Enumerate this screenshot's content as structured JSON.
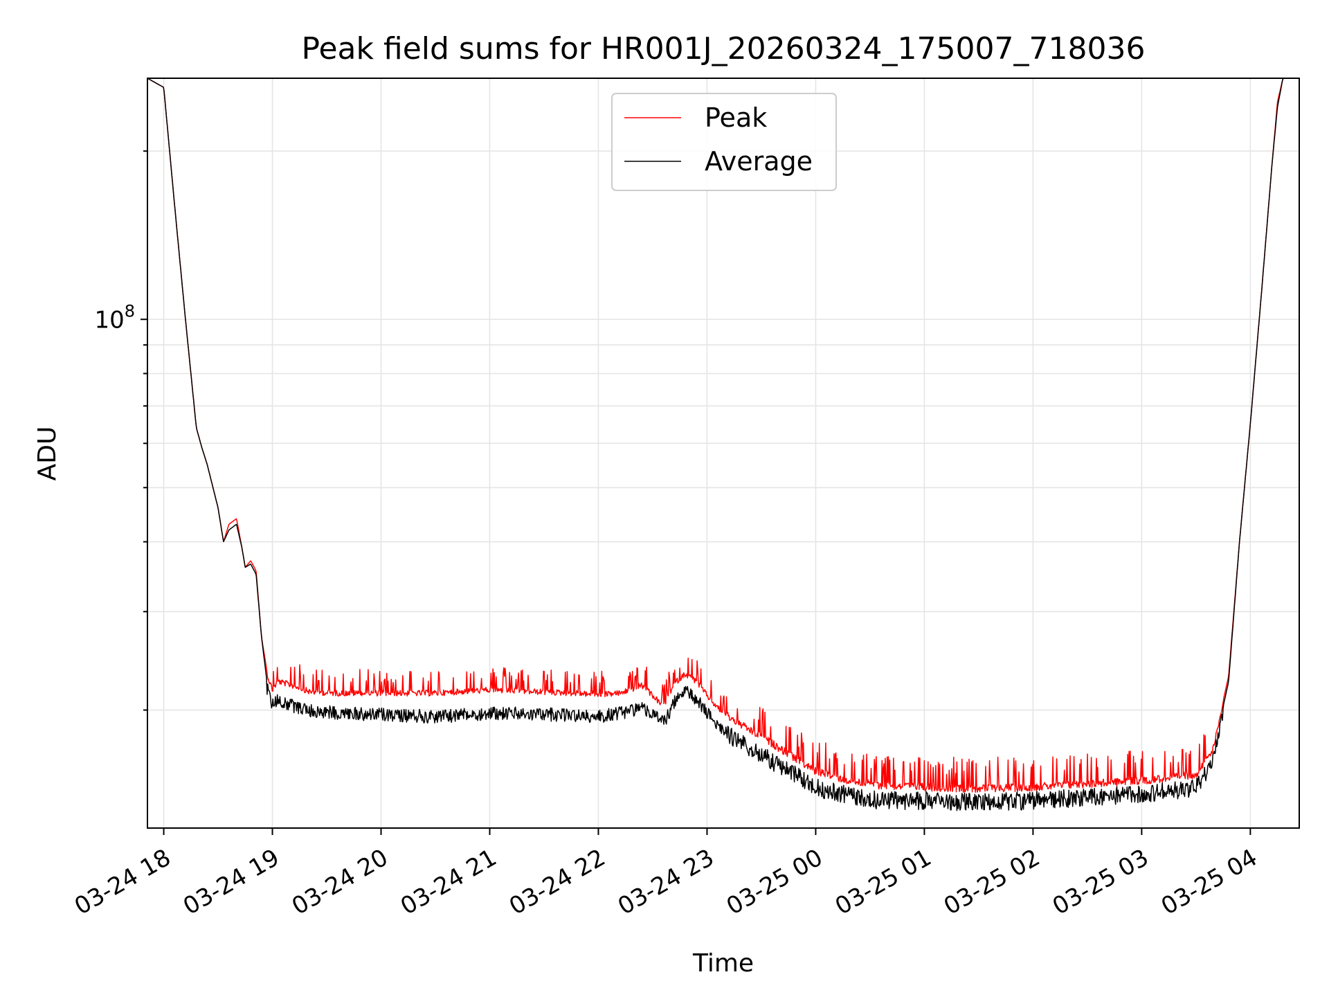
{
  "chart_data": {
    "type": "line",
    "title": "Peak field sums for HR001J_20260324_175007_718036",
    "xlabel": "Time",
    "ylabel": "ADU",
    "yscale": "log",
    "grid": true,
    "legend_position": "upper-center",
    "x_unit": "hours since 03-24 18:00",
    "xlim": [
      -0.15,
      10.45
    ],
    "ylim": [
      12300000,
      270000000
    ],
    "x_ticks": [
      0,
      1,
      2,
      3,
      4,
      5,
      6,
      7,
      8,
      9,
      10
    ],
    "x_tick_labels": [
      "03-24 18",
      "03-24 19",
      "03-24 20",
      "03-24 21",
      "03-24 22",
      "03-24 23",
      "03-25 00",
      "03-25 01",
      "03-25 02",
      "03-25 03",
      "03-25 04"
    ],
    "y_major_ticks": [
      {
        "value": 100000000,
        "base": "10",
        "exponent": "8"
      }
    ],
    "y_minor_ticks": [
      20000000,
      30000000,
      40000000,
      50000000,
      60000000,
      70000000,
      80000000,
      90000000,
      200000000
    ],
    "series": [
      {
        "name": "Peak",
        "color": "#ff0000",
        "noise": "spiky",
        "x": [
          -0.15,
          0.0,
          0.1,
          0.2,
          0.3,
          0.35,
          0.4,
          0.5,
          0.55,
          0.6,
          0.67,
          0.72,
          0.75,
          0.8,
          0.85,
          0.9,
          0.95,
          1.0,
          1.05,
          1.15,
          1.25,
          1.35,
          1.6,
          2.0,
          2.5,
          3.0,
          3.5,
          3.8,
          4.0,
          4.2,
          4.4,
          4.5,
          4.6,
          4.7,
          4.8,
          4.9,
          5.0,
          5.1,
          5.3,
          5.6,
          6.0,
          6.3,
          6.6,
          7.0,
          7.5,
          8.0,
          8.5,
          9.0,
          9.3,
          9.5,
          9.65,
          9.8,
          9.9,
          10.0,
          10.1,
          10.2,
          10.25,
          10.3,
          10.45
        ],
        "y": [
          270000000,
          260000000,
          160000000,
          100000000,
          64000000,
          59000000,
          55000000,
          46000000,
          40000000,
          43000000,
          44000000,
          39000000,
          36000000,
          37000000,
          35500000,
          27000000,
          23500000,
          22000000,
          22800000,
          22500000,
          22200000,
          21800000,
          21700000,
          21700000,
          21700000,
          22000000,
          21800000,
          21700000,
          21600000,
          21700000,
          22400000,
          21500000,
          20500000,
          22600000,
          23500000,
          22800000,
          21500000,
          20400000,
          19200000,
          17700000,
          15800000,
          15200000,
          14900000,
          14800000,
          14700000,
          14800000,
          15000000,
          15200000,
          15400000,
          15600000,
          17000000,
          23000000,
          40000000,
          65000000,
          110000000,
          190000000,
          245000000,
          270000000,
          270000000
        ]
      },
      {
        "name": "Average",
        "color": "#000000",
        "noise": "dense-down",
        "x": [
          -0.15,
          0.0,
          0.1,
          0.2,
          0.3,
          0.35,
          0.4,
          0.5,
          0.55,
          0.6,
          0.67,
          0.72,
          0.75,
          0.8,
          0.85,
          0.9,
          0.95,
          1.0,
          1.05,
          1.15,
          1.25,
          1.35,
          1.6,
          2.0,
          2.5,
          3.0,
          3.5,
          3.8,
          4.0,
          4.2,
          4.4,
          4.5,
          4.6,
          4.7,
          4.8,
          4.9,
          5.0,
          5.1,
          5.3,
          5.6,
          6.0,
          6.3,
          6.6,
          7.0,
          7.5,
          8.0,
          8.5,
          9.0,
          9.3,
          9.5,
          9.65,
          9.8,
          9.9,
          10.0,
          10.1,
          10.2,
          10.25,
          10.3,
          10.45
        ],
        "y": [
          270000000,
          260000000,
          160000000,
          100000000,
          64000000,
          59000000,
          55000000,
          46000000,
          40000000,
          42000000,
          43000000,
          39000000,
          36000000,
          36500000,
          35000000,
          27000000,
          22500000,
          21000000,
          21500000,
          21000000,
          20800000,
          20500000,
          20300000,
          20200000,
          20000000,
          20300000,
          20200000,
          20100000,
          20000000,
          20300000,
          20800000,
          20200000,
          19500000,
          21200000,
          22200000,
          21500000,
          20300000,
          19300000,
          18200000,
          16800000,
          15100000,
          14600000,
          14300000,
          14300000,
          14200000,
          14300000,
          14500000,
          14700000,
          14900000,
          15100000,
          16500000,
          22500000,
          40000000,
          65000000,
          110000000,
          190000000,
          240000000,
          270000000,
          270000000
        ]
      }
    ]
  }
}
